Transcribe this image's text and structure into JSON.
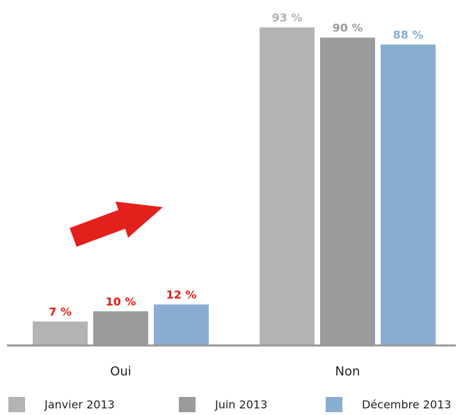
{
  "chart_data": {
    "type": "bar",
    "categories": [
      "Oui",
      "Non"
    ],
    "ylim": [
      0,
      100
    ],
    "series": [
      {
        "name": "Janvier 2013",
        "color": "#b3b3b3",
        "values": [
          7,
          93
        ],
        "value_labels": [
          "7 %",
          "93 %"
        ],
        "label_colors": [
          "#e3201b",
          "#b3b3b3"
        ]
      },
      {
        "name": "Juin 2013",
        "color": "#999b9c",
        "values": [
          10,
          90
        ],
        "value_labels": [
          "10 %",
          "90 %"
        ],
        "label_colors": [
          "#e3201b",
          "#999b9c"
        ]
      },
      {
        "name": "Décembre 2013",
        "color": "#8aadd2",
        "values": [
          12,
          88
        ],
        "value_labels": [
          "12 %",
          "88 %"
        ],
        "label_colors": [
          "#e3201b",
          "#8aadd2"
        ]
      }
    ]
  }
}
